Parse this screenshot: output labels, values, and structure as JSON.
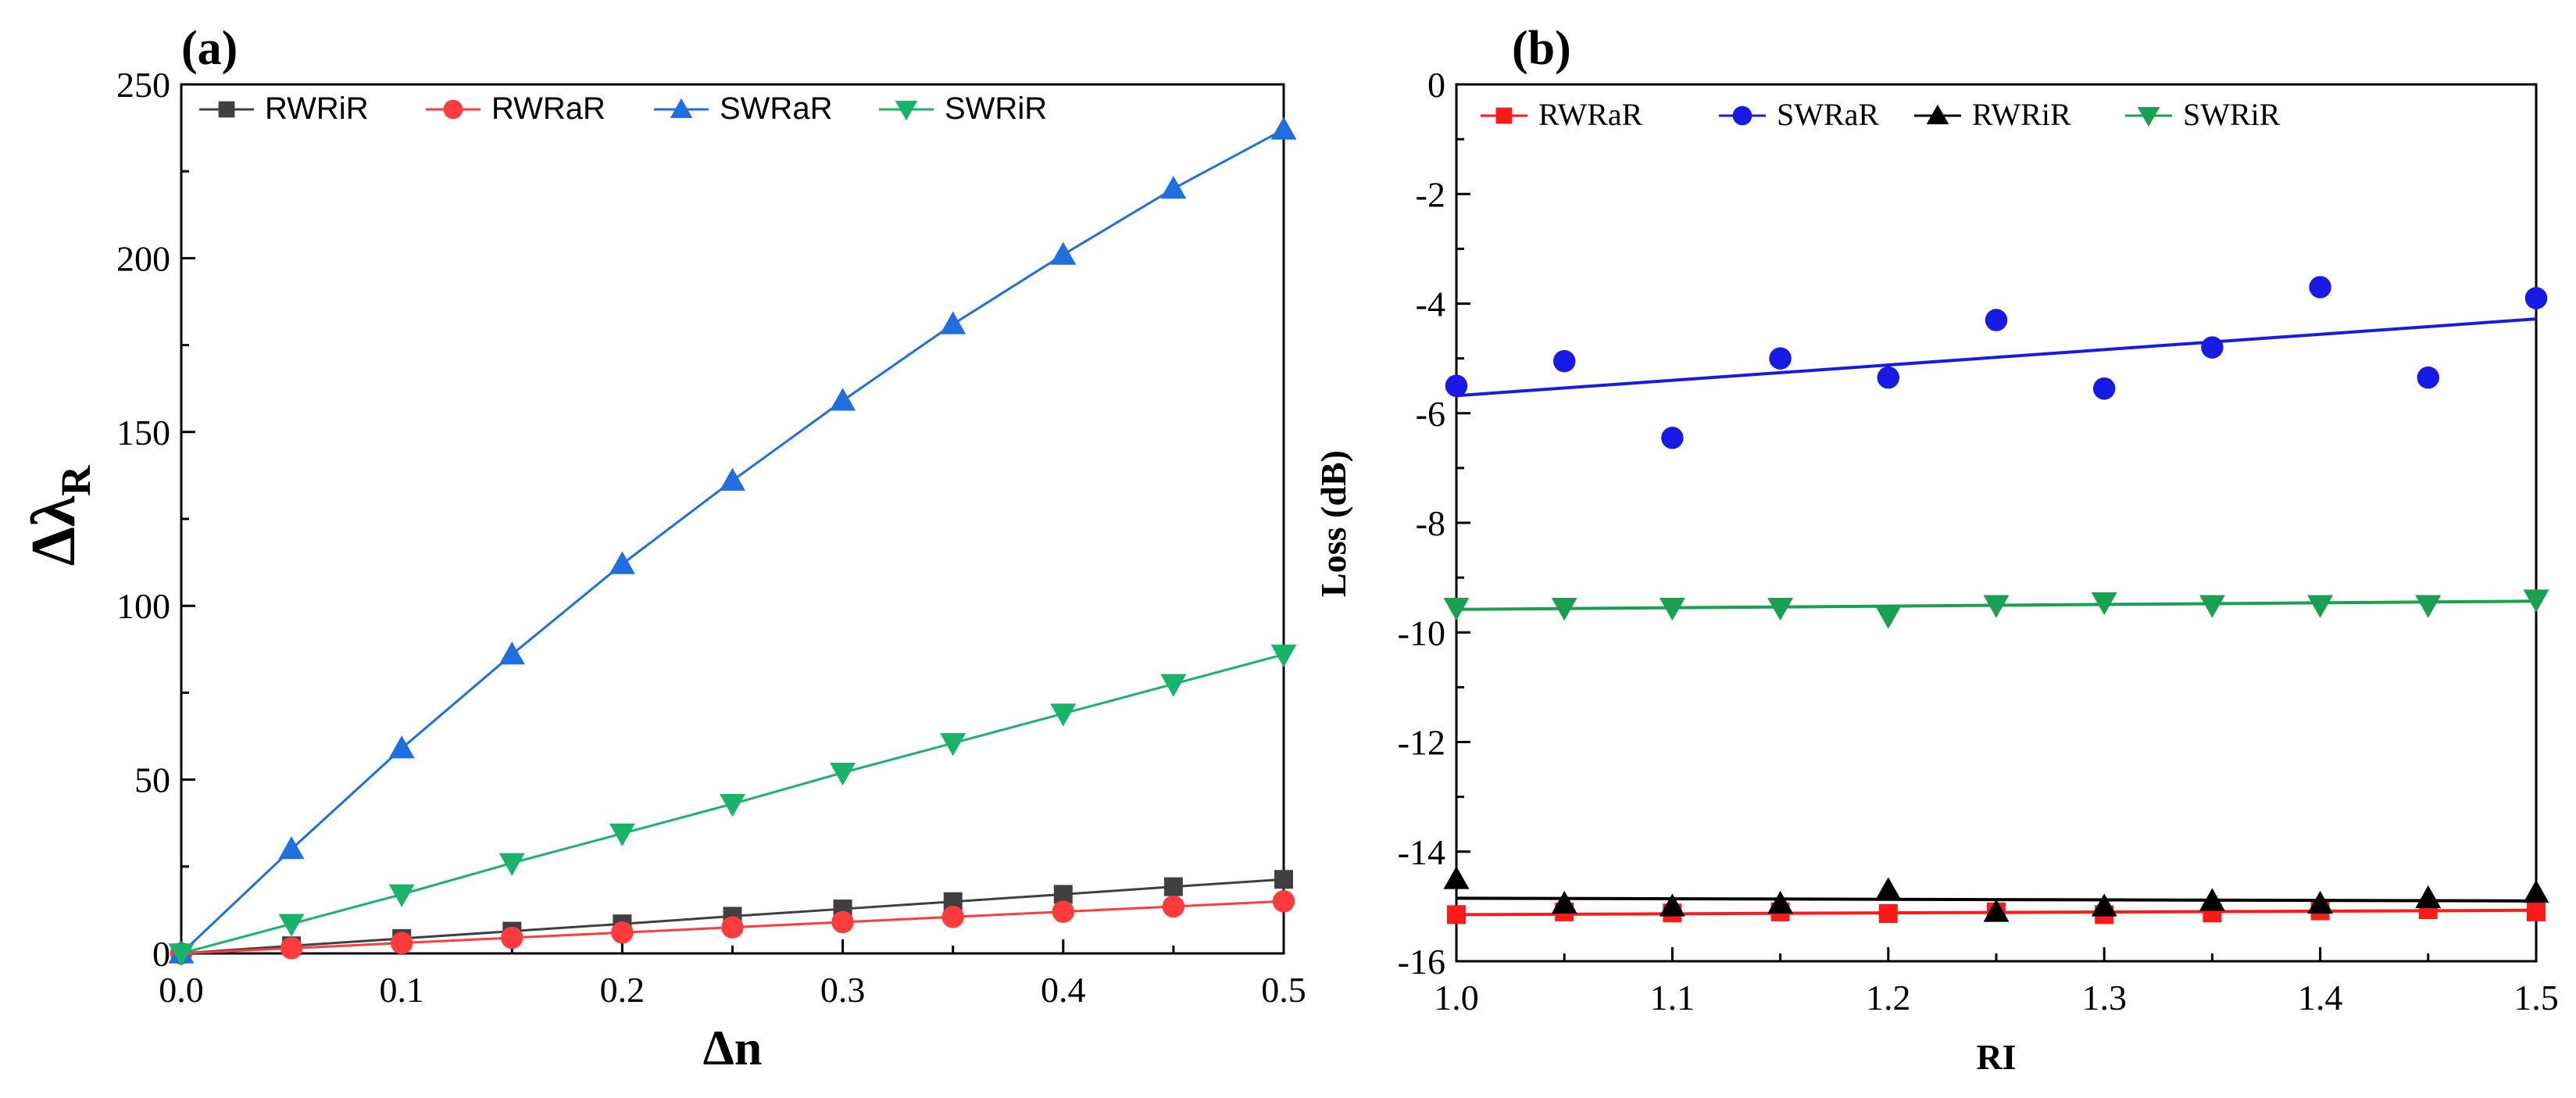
{
  "chart_data": [
    {
      "type": "line",
      "panel_label": "(a)",
      "xlabel": "Δn",
      "ylabel": "Δλ",
      "ylabel_sub": "R",
      "xlim": [
        0.0,
        0.5
      ],
      "ylim": [
        0,
        250
      ],
      "x_ticks": [
        "0.0",
        "0.1",
        "0.2",
        "0.3",
        "0.4",
        "0.5"
      ],
      "y_ticks": [
        "0",
        "50",
        "100",
        "150",
        "200",
        "250"
      ],
      "grid": false,
      "legend_position": "top",
      "x": [
        0.0,
        0.05,
        0.1,
        0.15,
        0.2,
        0.25,
        0.3,
        0.35,
        0.4,
        0.45,
        0.5
      ],
      "series": [
        {
          "name": "RWRiR",
          "color": "#404040",
          "marker": "square",
          "values": [
            0,
            2.2,
            4.3,
            6.4,
            8.5,
            10.7,
            12.8,
            14.9,
            17.0,
            19.2,
            21.3
          ]
        },
        {
          "name": "RWRaR",
          "color": "#ff3b3b",
          "marker": "circle",
          "values": [
            0,
            1.5,
            3.0,
            4.5,
            6.0,
            7.5,
            9.0,
            10.5,
            12.0,
            13.5,
            15.0
          ]
        },
        {
          "name": "SWRaR",
          "color": "#1f6fe0",
          "marker": "triangle-up",
          "values": [
            0,
            30,
            59,
            86,
            112,
            136,
            159,
            181,
            201,
            220,
            237
          ]
        },
        {
          "name": "SWRiR",
          "color": "#19b36b",
          "marker": "triangle-down",
          "values": [
            0,
            8.5,
            17,
            26,
            34.5,
            43,
            52,
            60.5,
            69,
            77.5,
            86
          ]
        }
      ]
    },
    {
      "type": "scatter",
      "panel_label": "(b)",
      "xlabel": "RI",
      "ylabel": "Loss (dB)",
      "xlim": [
        1.0,
        1.5
      ],
      "ylim": [
        -16,
        0
      ],
      "x_ticks": [
        "1.0",
        "1.1",
        "1.2",
        "1.3",
        "1.4",
        "1.5"
      ],
      "y_ticks": [
        "0",
        "-2",
        "-4",
        "-6",
        "-8",
        "-10",
        "-12",
        "-14",
        "-16"
      ],
      "grid": false,
      "legend_position": "top",
      "x": [
        1.0,
        1.05,
        1.1,
        1.15,
        1.2,
        1.25,
        1.3,
        1.35,
        1.4,
        1.45,
        1.5
      ],
      "series": [
        {
          "name": "RWRaR",
          "color": "#ff1a1a",
          "marker": "square",
          "values": [
            -15.15,
            -15.1,
            -15.12,
            -15.1,
            -15.13,
            -15.1,
            -15.15,
            -15.12,
            -15.08,
            -15.06,
            -15.1
          ],
          "fit": [
            -15.15,
            -15.07
          ]
        },
        {
          "name": "SWRaR",
          "color": "#1a1ae6",
          "marker": "circle",
          "values": [
            -5.5,
            -5.05,
            -6.45,
            -5.0,
            -5.35,
            -4.3,
            -5.55,
            -4.8,
            -3.7,
            -5.35,
            -3.9
          ],
          "fit": [
            -5.68,
            -4.28
          ]
        },
        {
          "name": "RWRiR",
          "color": "#000000",
          "marker": "triangle-up",
          "values": [
            -14.5,
            -14.95,
            -15.0,
            -14.95,
            -14.7,
            -15.1,
            -15.0,
            -14.9,
            -14.95,
            -14.85,
            -14.75
          ],
          "fit": [
            -14.85,
            -14.9
          ]
        },
        {
          "name": "SWRiR",
          "color": "#19a050",
          "marker": "triangle-down",
          "values": [
            -9.55,
            -9.55,
            -9.55,
            -9.55,
            -9.7,
            -9.5,
            -9.45,
            -9.5,
            -9.5,
            -9.5,
            -9.4
          ],
          "fit": [
            -9.58,
            -9.43
          ]
        }
      ]
    }
  ]
}
